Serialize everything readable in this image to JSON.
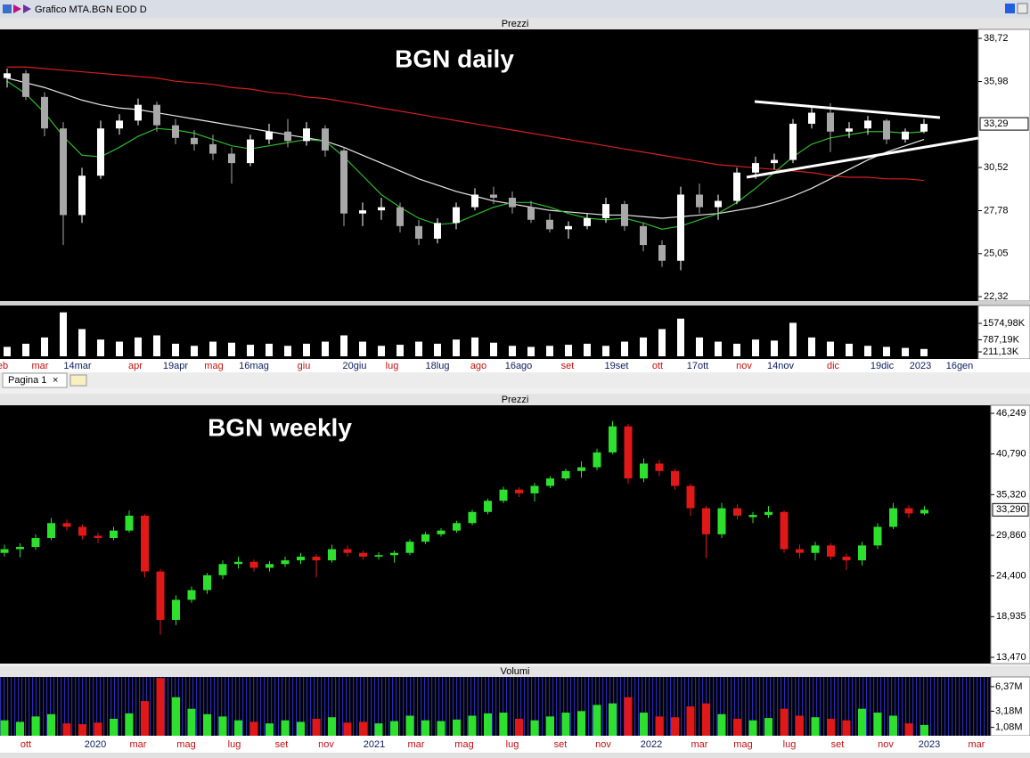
{
  "window_title": "Grafico MTA.BGN EOD D",
  "tab": "Pagina 1",
  "chart_data": [
    {
      "type": "candlestick",
      "header": "Prezzi",
      "title": "BGN daily",
      "up_color": "#ffffff",
      "down_color": "#a8a8a8",
      "candles": [
        [
          36.2,
          36.8,
          35.6,
          36.5
        ],
        [
          36.5,
          36.7,
          34.8,
          35.0
        ],
        [
          35.0,
          35.3,
          32.5,
          33.0
        ],
        [
          33.0,
          33.4,
          25.6,
          27.5
        ],
        [
          27.5,
          30.5,
          27.0,
          30.0
        ],
        [
          30.0,
          33.5,
          29.8,
          33.0
        ],
        [
          33.0,
          33.9,
          32.6,
          33.5
        ],
        [
          33.5,
          34.9,
          33.2,
          34.5
        ],
        [
          34.5,
          34.7,
          32.8,
          33.2
        ],
        [
          33.2,
          33.6,
          32.0,
          32.4
        ],
        [
          32.4,
          32.9,
          31.6,
          32.0
        ],
        [
          32.0,
          32.6,
          31.0,
          31.4
        ],
        [
          31.4,
          31.8,
          29.5,
          30.8
        ],
        [
          30.8,
          32.6,
          30.6,
          32.3
        ],
        [
          32.3,
          33.3,
          32.0,
          32.8
        ],
        [
          32.8,
          33.6,
          31.8,
          32.2
        ],
        [
          32.2,
          33.4,
          31.9,
          33.0
        ],
        [
          33.0,
          33.2,
          31.2,
          31.6
        ],
        [
          31.6,
          31.8,
          26.8,
          27.6
        ],
        [
          27.6,
          28.3,
          26.8,
          27.8
        ],
        [
          27.8,
          28.6,
          27.2,
          28.0
        ],
        [
          28.0,
          28.3,
          26.4,
          26.8
        ],
        [
          26.8,
          27.2,
          25.6,
          26.0
        ],
        [
          26.0,
          27.3,
          25.7,
          27.0
        ],
        [
          27.0,
          28.3,
          26.6,
          28.0
        ],
        [
          28.0,
          29.2,
          27.8,
          28.8
        ],
        [
          28.8,
          29.3,
          28.2,
          28.6
        ],
        [
          28.6,
          29.0,
          27.6,
          28.0
        ],
        [
          28.0,
          28.4,
          27.0,
          27.2
        ],
        [
          27.2,
          27.6,
          26.4,
          26.6
        ],
        [
          26.6,
          27.1,
          26.0,
          26.8
        ],
        [
          26.8,
          27.6,
          26.6,
          27.3
        ],
        [
          27.3,
          28.6,
          27.0,
          28.2
        ],
        [
          28.2,
          28.4,
          26.5,
          26.8
        ],
        [
          26.8,
          27.0,
          25.2,
          25.6
        ],
        [
          25.6,
          25.9,
          24.2,
          24.6
        ],
        [
          24.6,
          29.3,
          24.0,
          28.8
        ],
        [
          28.8,
          29.5,
          27.6,
          28.0
        ],
        [
          28.0,
          28.8,
          27.2,
          28.4
        ],
        [
          28.4,
          30.5,
          28.2,
          30.2
        ],
        [
          30.2,
          31.2,
          29.8,
          30.8
        ],
        [
          30.8,
          31.4,
          30.4,
          31.0
        ],
        [
          31.0,
          33.6,
          30.8,
          33.3
        ],
        [
          33.3,
          34.4,
          33.0,
          34.0
        ],
        [
          34.0,
          34.6,
          31.5,
          32.8
        ],
        [
          32.8,
          33.4,
          32.4,
          33.0
        ],
        [
          33.0,
          33.8,
          32.6,
          33.5
        ],
        [
          33.5,
          33.6,
          32.0,
          32.3
        ],
        [
          32.3,
          33.0,
          32.1,
          32.8
        ],
        [
          32.8,
          33.6,
          32.7,
          33.29
        ]
      ],
      "moving_averages": [
        {
          "color": "#d42020",
          "values": [
            36.9,
            36.9,
            36.8,
            36.7,
            36.6,
            36.5,
            36.4,
            36.3,
            36.2,
            36.0,
            35.9,
            35.8,
            35.6,
            35.5,
            35.3,
            35.2,
            35.0,
            34.9,
            34.7,
            34.5,
            34.3,
            34.1,
            33.9,
            33.7,
            33.5,
            33.3,
            33.1,
            32.9,
            32.7,
            32.5,
            32.3,
            32.1,
            31.9,
            31.7,
            31.5,
            31.3,
            31.1,
            30.9,
            30.7,
            30.6,
            30.5,
            30.4,
            30.3,
            30.2,
            30.0,
            29.9,
            29.9,
            29.8,
            29.8,
            29.7
          ]
        },
        {
          "color": "#e8e8e8",
          "values": [
            36.2,
            35.9,
            35.6,
            35.2,
            34.8,
            34.5,
            34.3,
            34.2,
            34.0,
            33.8,
            33.6,
            33.4,
            33.2,
            33.0,
            32.8,
            32.6,
            32.4,
            32.2,
            31.8,
            31.3,
            30.8,
            30.3,
            29.8,
            29.4,
            29.0,
            28.7,
            28.4,
            28.2,
            28.0,
            27.8,
            27.7,
            27.6,
            27.5,
            27.5,
            27.4,
            27.3,
            27.4,
            27.5,
            27.6,
            27.8,
            28.0,
            28.3,
            28.7,
            29.2,
            29.8,
            30.4,
            31.0,
            31.5,
            31.9,
            32.3
          ]
        },
        {
          "color": "#2fb82f",
          "values": [
            36.0,
            35.2,
            34.0,
            32.5,
            31.3,
            31.2,
            31.8,
            32.5,
            33.0,
            32.9,
            32.7,
            32.3,
            31.9,
            31.7,
            31.9,
            32.1,
            32.3,
            32.2,
            31.2,
            30.0,
            28.8,
            28.0,
            27.3,
            26.9,
            27.0,
            27.5,
            28.0,
            28.3,
            28.3,
            28.0,
            27.6,
            27.3,
            27.2,
            27.3,
            27.0,
            26.6,
            26.8,
            27.2,
            27.6,
            28.3,
            29.2,
            30.2,
            31.2,
            32.0,
            32.4,
            32.6,
            32.8,
            32.8,
            32.7,
            32.8
          ]
        }
      ],
      "ylim": [
        22.04,
        39.29
      ],
      "yticks": [
        {
          "value": 38.72,
          "label": "38,72"
        },
        {
          "value": 35.98,
          "label": "35,98"
        },
        {
          "value": 30.52,
          "label": "30,52"
        },
        {
          "value": 27.78,
          "label": "27,78"
        },
        {
          "value": 25.05,
          "label": "25,05"
        },
        {
          "value": 22.32,
          "label": "22,32"
        }
      ],
      "last": {
        "value": 33.29,
        "label": "33,29"
      },
      "volume": {
        "color": "#ffffff",
        "ylim": [
          0,
          2427
        ],
        "values": [
          450,
          600,
          900,
          2100,
          1300,
          800,
          700,
          900,
          1000,
          600,
          500,
          700,
          650,
          550,
          600,
          500,
          600,
          700,
          1000,
          700,
          500,
          550,
          700,
          600,
          800,
          900,
          650,
          500,
          450,
          500,
          550,
          600,
          500,
          700,
          900,
          1300,
          1800,
          900,
          700,
          600,
          800,
          750,
          1600,
          900,
          700,
          600,
          500,
          450,
          400,
          350
        ],
        "yticks": [
          {
            "value": 1574.98,
            "label": "1574,98K"
          },
          {
            "value": 787.19,
            "label": "787,19K"
          },
          {
            "value": 211.13,
            "label": "211,13K"
          }
        ]
      },
      "x_labels": [
        "eb",
        "mar",
        "14mar",
        "apr",
        "19apr",
        "mag",
        "16mag",
        "giu",
        "20giu",
        "lug",
        "18lug",
        "ago",
        "16ago",
        "set",
        "19set",
        "ott",
        "17ott",
        "nov",
        "14nov",
        "dic",
        "19dic",
        "2023",
        "16gen"
      ]
    },
    {
      "type": "candlestick",
      "header": "Prezzi",
      "title": "BGN weekly",
      "up_color": "#2ee02e",
      "down_color": "#e01818",
      "candles": [
        [
          27.5,
          28.6,
          27.0,
          28.0
        ],
        [
          28.0,
          28.8,
          26.9,
          28.3
        ],
        [
          28.3,
          30.0,
          27.9,
          29.5
        ],
        [
          29.5,
          32.2,
          29.2,
          31.5
        ],
        [
          31.5,
          32.0,
          30.5,
          31.0
        ],
        [
          31.0,
          31.3,
          29.3,
          29.8
        ],
        [
          29.8,
          30.2,
          28.8,
          29.5
        ],
        [
          29.5,
          31.0,
          29.2,
          30.5
        ],
        [
          30.5,
          33.2,
          30.2,
          32.5
        ],
        [
          32.5,
          32.7,
          24.2,
          25.0
        ],
        [
          25.0,
          25.3,
          16.5,
          18.5
        ],
        [
          18.5,
          21.8,
          17.8,
          21.2
        ],
        [
          21.2,
          23.0,
          20.8,
          22.5
        ],
        [
          22.5,
          24.8,
          22.0,
          24.5
        ],
        [
          24.5,
          26.5,
          24.0,
          26.0
        ],
        [
          26.0,
          27.0,
          25.4,
          26.3
        ],
        [
          26.3,
          26.6,
          25.0,
          25.5
        ],
        [
          25.5,
          26.4,
          25.0,
          26.0
        ],
        [
          26.0,
          27.0,
          25.6,
          26.5
        ],
        [
          26.5,
          27.5,
          26.0,
          27.0
        ],
        [
          27.0,
          27.3,
          24.2,
          26.5
        ],
        [
          26.5,
          28.6,
          26.2,
          28.0
        ],
        [
          28.0,
          28.5,
          27.0,
          27.5
        ],
        [
          27.5,
          27.8,
          26.6,
          27.0
        ],
        [
          27.0,
          27.6,
          26.6,
          27.2
        ],
        [
          27.2,
          27.8,
          26.2,
          27.5
        ],
        [
          27.5,
          29.3,
          27.2,
          29.0
        ],
        [
          29.0,
          30.3,
          28.7,
          30.0
        ],
        [
          30.0,
          30.8,
          29.7,
          30.5
        ],
        [
          30.5,
          31.8,
          30.2,
          31.5
        ],
        [
          31.5,
          33.3,
          31.2,
          33.0
        ],
        [
          33.0,
          34.8,
          32.7,
          34.5
        ],
        [
          34.5,
          36.4,
          34.2,
          36.0
        ],
        [
          36.0,
          36.3,
          35.0,
          35.5
        ],
        [
          35.5,
          36.9,
          34.4,
          36.5
        ],
        [
          36.5,
          37.8,
          36.2,
          37.5
        ],
        [
          37.5,
          38.8,
          37.2,
          38.5
        ],
        [
          38.5,
          39.8,
          37.6,
          39.0
        ],
        [
          39.0,
          41.5,
          38.6,
          41.0
        ],
        [
          41.0,
          45.2,
          40.8,
          44.5
        ],
        [
          44.5,
          44.8,
          36.8,
          37.5
        ],
        [
          37.5,
          40.2,
          37.0,
          39.5
        ],
        [
          39.5,
          40.0,
          37.8,
          38.5
        ],
        [
          38.5,
          38.8,
          36.0,
          36.5
        ],
        [
          36.5,
          36.8,
          32.5,
          33.5
        ],
        [
          33.5,
          33.8,
          26.8,
          30.0
        ],
        [
          30.0,
          34.2,
          29.5,
          33.5
        ],
        [
          33.5,
          34.0,
          32.0,
          32.5
        ],
        [
          32.3,
          33.0,
          31.5,
          32.6
        ],
        [
          32.6,
          33.8,
          32.2,
          33.0
        ],
        [
          33.0,
          33.2,
          27.5,
          28.0
        ],
        [
          28.0,
          28.6,
          26.8,
          27.5
        ],
        [
          27.5,
          29.0,
          26.5,
          28.5
        ],
        [
          28.5,
          28.8,
          26.6,
          27.0
        ],
        [
          27.0,
          27.4,
          25.2,
          26.5
        ],
        [
          26.5,
          29.0,
          25.8,
          28.5
        ],
        [
          28.5,
          31.5,
          28.0,
          31.0
        ],
        [
          31.0,
          34.2,
          30.7,
          33.5
        ],
        [
          33.5,
          33.9,
          32.2,
          32.8
        ],
        [
          32.8,
          33.8,
          32.6,
          33.29
        ]
      ],
      "ylim": [
        12.63,
        47.33
      ],
      "yticks": [
        {
          "value": 46.249,
          "label": "46,249"
        },
        {
          "value": 40.79,
          "label": "40,790"
        },
        {
          "value": 35.32,
          "label": "35,320"
        },
        {
          "value": 29.86,
          "label": "29,860"
        },
        {
          "value": 24.4,
          "label": "24,400"
        },
        {
          "value": 18.935,
          "label": "18,935"
        },
        {
          "value": 13.47,
          "label": "13,470"
        }
      ],
      "last": {
        "value": 33.29,
        "label": "33,290"
      },
      "volume": {
        "header": "Volumi",
        "ylim": [
          0,
          7.63
        ],
        "values": [
          2.0,
          1.8,
          2.5,
          2.8,
          1.6,
          1.5,
          1.7,
          2.2,
          2.9,
          4.5,
          7.5,
          5.0,
          3.5,
          2.8,
          2.5,
          2.0,
          1.8,
          1.6,
          2.0,
          1.8,
          2.2,
          2.4,
          1.7,
          1.8,
          1.6,
          1.9,
          2.6,
          2.0,
          1.9,
          2.1,
          2.6,
          2.9,
          3.0,
          2.2,
          2.0,
          2.5,
          3.0,
          3.2,
          4.0,
          4.2,
          5.0,
          3.0,
          2.5,
          2.4,
          3.8,
          4.2,
          2.8,
          2.2,
          2.0,
          2.3,
          3.5,
          2.6,
          2.4,
          2.2,
          2.0,
          3.5,
          3.0,
          2.6,
          1.6,
          1.4
        ],
        "yticks": [
          {
            "value": 6.37,
            "label": "6,37M"
          },
          {
            "value": 3.18,
            "label": "3,18M"
          },
          {
            "value": 1.08,
            "label": "1,08M"
          }
        ]
      },
      "x_labels": [
        "ott",
        "2020",
        "mar",
        "mag",
        "lug",
        "set",
        "nov",
        "2021",
        "mar",
        "mag",
        "lug",
        "set",
        "nov",
        "2022",
        "mar",
        "mag",
        "lug",
        "set",
        "nov",
        "2023",
        "mar"
      ]
    }
  ]
}
